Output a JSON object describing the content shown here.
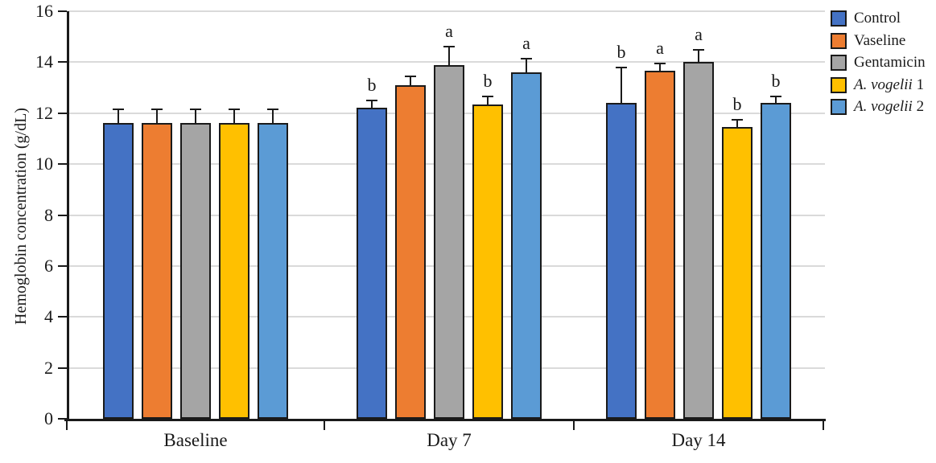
{
  "figure": {
    "background": "#ffffff",
    "axis_color": "#1a1a1a",
    "gridline_color": "#dadada",
    "bar_border_color": "#1a1a1a",
    "error_bar_color": "#1a1a1a",
    "text_color": "#1a1a1a"
  },
  "chart_data": {
    "type": "bar",
    "title": "",
    "xlabel": "",
    "ylabel": "Hemoglobin concentration (g/dL)",
    "ylim": [
      0,
      16
    ],
    "yticks": [
      0,
      2,
      4,
      6,
      8,
      10,
      12,
      14,
      16
    ],
    "grid": "horizontal",
    "legend_position": "top-right",
    "categories": [
      "Baseline",
      "Day 7",
      "Day 14"
    ],
    "series": [
      {
        "name": "Control",
        "legend_italic": "",
        "legend_plain": "Control",
        "color": "#4472C4",
        "values": [
          11.6,
          12.2,
          12.4
        ],
        "errors_plus": [
          0.55,
          0.3,
          1.4
        ],
        "letters": [
          "",
          "b",
          "b"
        ]
      },
      {
        "name": "Vaseline",
        "legend_italic": "",
        "legend_plain": "Vaseline",
        "color": "#ED7D31",
        "values": [
          11.6,
          13.1,
          13.65
        ],
        "errors_plus": [
          0.55,
          0.35,
          0.3
        ],
        "letters": [
          "",
          "",
          "a"
        ]
      },
      {
        "name": "Gentamicin",
        "legend_italic": "",
        "legend_plain": "Gentamicin",
        "color": "#A5A5A5",
        "values": [
          11.6,
          13.9,
          14.0
        ],
        "errors_plus": [
          0.55,
          0.7,
          0.5
        ],
        "letters": [
          "",
          "a",
          "a"
        ]
      },
      {
        "name": "A. vogelii 1",
        "legend_italic": "A. vogelii",
        "legend_plain": " 1",
        "color": "#FFC000",
        "values": [
          11.6,
          12.35,
          11.45
        ],
        "errors_plus": [
          0.55,
          0.3,
          0.3
        ],
        "letters": [
          "",
          "b",
          "b"
        ]
      },
      {
        "name": "A. vogelii 2",
        "legend_italic": "A. vogelii",
        "legend_plain": " 2",
        "color": "#5B9BD5",
        "values": [
          11.6,
          13.6,
          12.4
        ],
        "errors_plus": [
          0.55,
          0.55,
          0.25
        ],
        "letters": [
          "",
          "a",
          "b"
        ]
      }
    ]
  }
}
